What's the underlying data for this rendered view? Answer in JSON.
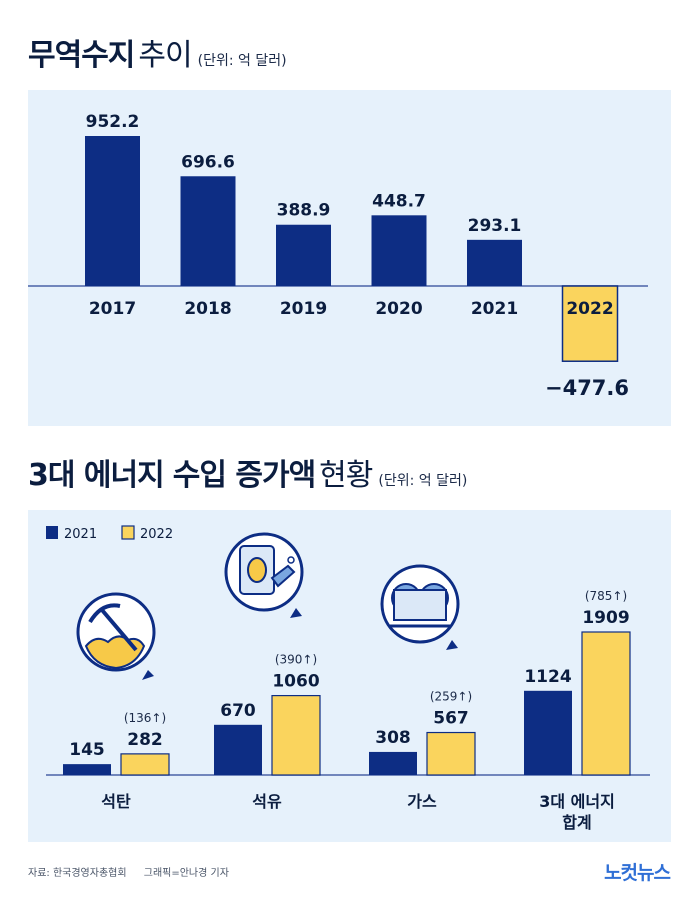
{
  "titles": {
    "t1_bold": "무역수지",
    "t1_light": "추이",
    "t1_unit": "(단위: 억 달러)",
    "t2_part1": "3대 에너지",
    "t2_highlight": "수입 증가액",
    "t2_light": "현황",
    "t2_unit": "(단위: 억 달러)"
  },
  "chart_data": [
    {
      "type": "bar",
      "title": "무역수지 추이",
      "unit": "억 달러",
      "categories": [
        "2017",
        "2018",
        "2019",
        "2020",
        "2021",
        "2022"
      ],
      "values": [
        952.2,
        696.6,
        388.9,
        448.7,
        293.1,
        -477.6
      ],
      "value_labels": [
        "952.2",
        "696.6",
        "388.9",
        "448.7",
        "293.1",
        "−477.6"
      ],
      "highlight_index": 5,
      "ylim": [
        -560,
        1000
      ]
    },
    {
      "type": "bar",
      "title": "3대 에너지 수입 증가액 현황",
      "unit": "억 달러",
      "categories": [
        "석탄",
        "석유",
        "가스",
        "3대 에너지 합계"
      ],
      "series": [
        {
          "name": "2021",
          "values": [
            145,
            670,
            308,
            1124
          ],
          "color": "#0d2d84"
        },
        {
          "name": "2022",
          "values": [
            282,
            1060,
            567,
            1909
          ],
          "color": "#fad45d"
        }
      ],
      "increase_labels": [
        "(136↑)",
        "(390↑)",
        "(259↑)",
        "(785↑)"
      ],
      "ylim": [
        0,
        2250
      ]
    }
  ],
  "colors": {
    "navy": "#0d2d84",
    "yellow": "#fad45d",
    "panel": "#e6f1fb",
    "axis": "#4a63a8"
  },
  "footer": {
    "source": "자료: 한국경영자총협회",
    "graphic": "그래픽=안나경 기자",
    "brand": "노컷뉴스"
  }
}
